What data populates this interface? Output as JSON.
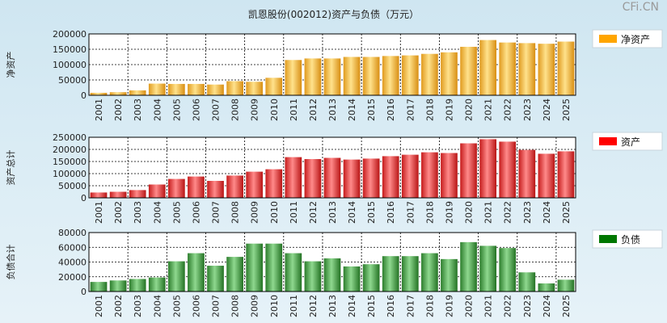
{
  "title": "凯恩股份(002012)资产与负债（万元）",
  "watermark": "CFi.CN",
  "chart_data": [
    {
      "type": "bar",
      "ylabel": "净资产",
      "legend": "净资产",
      "legend_color": "#ffa500",
      "ylim": [
        0,
        200000
      ],
      "yticks": [
        0,
        50000,
        100000,
        150000,
        200000
      ],
      "categories": [
        "2001",
        "2002",
        "2003",
        "2004",
        "2005",
        "2006",
        "2007",
        "2008",
        "2009",
        "2010",
        "2011",
        "2012",
        "2013",
        "2014",
        "2015",
        "2016",
        "2017",
        "2018",
        "2019",
        "2020",
        "2021",
        "2022",
        "2023",
        "2024",
        "2025"
      ],
      "values": [
        8000,
        10000,
        16000,
        38000,
        37000,
        37000,
        35000,
        46000,
        44000,
        57000,
        115000,
        120000,
        120000,
        125000,
        125000,
        128000,
        130000,
        135000,
        140000,
        158000,
        180000,
        172000,
        170000,
        168000,
        175000
      ]
    },
    {
      "type": "bar",
      "ylabel": "资产总计",
      "legend": "资产",
      "legend_color": "#ff0000",
      "ylim": [
        0,
        250000
      ],
      "yticks": [
        0,
        50000,
        100000,
        150000,
        200000,
        250000
      ],
      "categories": [
        "2001",
        "2002",
        "2003",
        "2004",
        "2005",
        "2006",
        "2007",
        "2008",
        "2009",
        "2010",
        "2011",
        "2012",
        "2013",
        "2014",
        "2015",
        "2016",
        "2017",
        "2018",
        "2019",
        "2020",
        "2021",
        "2022",
        "2023",
        "2024",
        "2025"
      ],
      "values": [
        22000,
        25000,
        32000,
        55000,
        78000,
        88000,
        70000,
        92000,
        108000,
        118000,
        168000,
        160000,
        165000,
        158000,
        162000,
        172000,
        178000,
        188000,
        185000,
        225000,
        242000,
        232000,
        198000,
        182000,
        192000
      ]
    },
    {
      "type": "bar",
      "ylabel": "负债合计",
      "legend": "负债",
      "legend_color": "#007700",
      "ylim": [
        0,
        80000
      ],
      "yticks": [
        0,
        20000,
        40000,
        60000,
        80000
      ],
      "categories": [
        "2001",
        "2002",
        "2003",
        "2004",
        "2005",
        "2006",
        "2007",
        "2008",
        "2009",
        "2010",
        "2011",
        "2012",
        "2013",
        "2014",
        "2015",
        "2016",
        "2017",
        "2018",
        "2019",
        "2020",
        "2021",
        "2022",
        "2023",
        "2024",
        "2025"
      ],
      "values": [
        13000,
        15000,
        17000,
        19000,
        41000,
        52000,
        35000,
        47000,
        65000,
        65000,
        52000,
        41000,
        45000,
        34000,
        37000,
        48000,
        48000,
        52000,
        44000,
        67000,
        62000,
        59000,
        26000,
        11000,
        16000
      ]
    }
  ]
}
